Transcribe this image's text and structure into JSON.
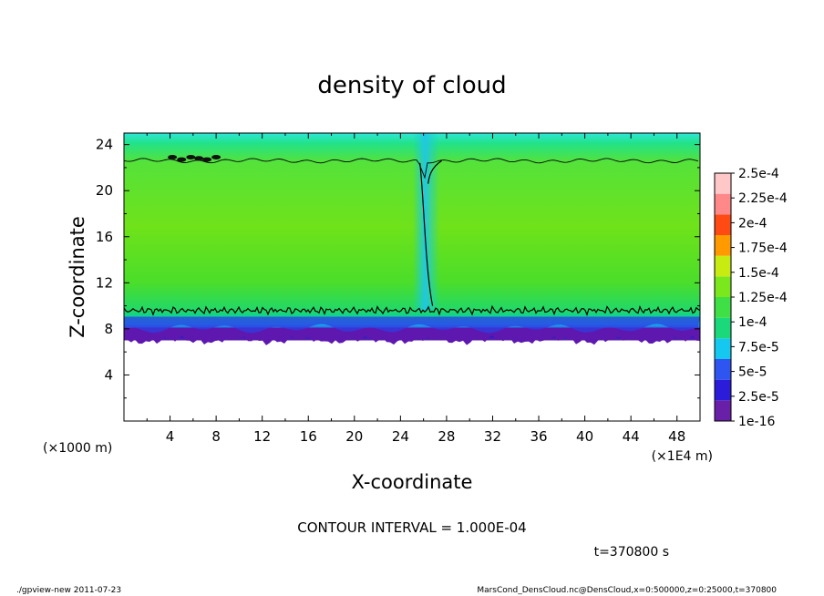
{
  "chart_data": {
    "type": "heatmap",
    "title": "density of cloud",
    "xlabel": "X-coordinate",
    "ylabel": "Z-coordinate",
    "x_unit_left": "(×1000 m)",
    "x_unit_right": "(×1E4 m)",
    "xlim": [
      0,
      50
    ],
    "ylim": [
      0,
      25
    ],
    "xticks": [
      "4",
      "8",
      "12",
      "16",
      "20",
      "24",
      "28",
      "32",
      "36",
      "40",
      "44",
      "48"
    ],
    "yticks": [
      "4",
      "8",
      "12",
      "16",
      "20",
      "24"
    ],
    "contour_interval": "CONTOUR INTERVAL = 1.000E-04",
    "time_label": "t=370800 s",
    "colorbar": {
      "labels": [
        "1e-16",
        "2.5e-5",
        "5e-5",
        "7.5e-5",
        "1e-4",
        "1.25e-4",
        "1.5e-4",
        "1.75e-4",
        "2e-4",
        "2.25e-4",
        "2.5e-4"
      ],
      "colors": [
        "#6a1fa8",
        "#2a1cd9",
        "#2f55f0",
        "#14c8f0",
        "#1bd87a",
        "#3fe045",
        "#7ae81c",
        "#c8ec12",
        "#ff9a00",
        "#ff4a14",
        "#ff8888",
        "#ffc8c8"
      ]
    },
    "cloud_layer": {
      "base_z": 7.0,
      "lower_contour_z": 9.6,
      "upper_contour_z": 22.6,
      "top_z": 25,
      "downdraft_x": 26
    }
  },
  "footer": {
    "left": "./gpview-new  2011-07-23",
    "right": "MarsCond_DensCloud.nc@DensCloud,x=0:500000,z=0:25000,t=370800"
  }
}
